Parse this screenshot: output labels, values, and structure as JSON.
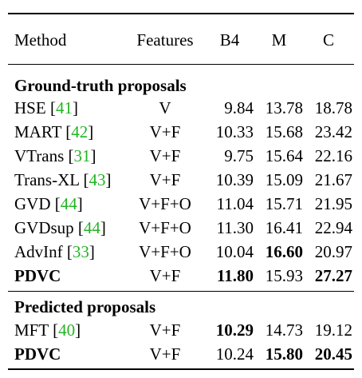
{
  "header": {
    "method": "Method",
    "features": "Features",
    "b4": "B4",
    "m": "M",
    "c": "C"
  },
  "sections": [
    {
      "title": "Ground-truth proposals",
      "rows": [
        {
          "name": "HSE",
          "cite": "41",
          "features": "V",
          "b4": "9.84",
          "m": "13.78",
          "c": "18.78"
        },
        {
          "name": "MART",
          "cite": "42",
          "features": "V+F",
          "b4": "10.33",
          "m": "15.68",
          "c": "23.42"
        },
        {
          "name": "VTrans",
          "cite": "31",
          "features": "V+F",
          "b4": "9.75",
          "m": "15.64",
          "c": "22.16"
        },
        {
          "name": "Trans-XL",
          "cite": "43",
          "features": "V+F",
          "b4": "10.39",
          "m": "15.09",
          "c": "21.67"
        },
        {
          "name": "GVD",
          "cite": "44",
          "features": "V+F+O",
          "b4": "11.04",
          "m": "15.71",
          "c": "21.95"
        },
        {
          "name": "GVDsup",
          "cite": "44",
          "features": "V+F+O",
          "b4": "11.30",
          "m": "16.41",
          "c": "22.94"
        },
        {
          "name": "AdvInf",
          "cite": "33",
          "features": "V+F+O",
          "b4": "10.04",
          "m": "16.60",
          "c": "20.97"
        },
        {
          "name": "PDVC",
          "cite": "",
          "features": "V+F",
          "b4": "11.80",
          "m": "15.93",
          "c": "27.27"
        }
      ]
    },
    {
      "title": "Predicted proposals",
      "rows": [
        {
          "name": "MFT",
          "cite": "40",
          "features": "V+F",
          "b4": "10.29",
          "m": "14.73",
          "c": "19.12"
        },
        {
          "name": "PDVC",
          "cite": "",
          "features": "V+F",
          "b4": "10.24",
          "m": "15.80",
          "c": "20.45"
        }
      ]
    }
  ]
}
